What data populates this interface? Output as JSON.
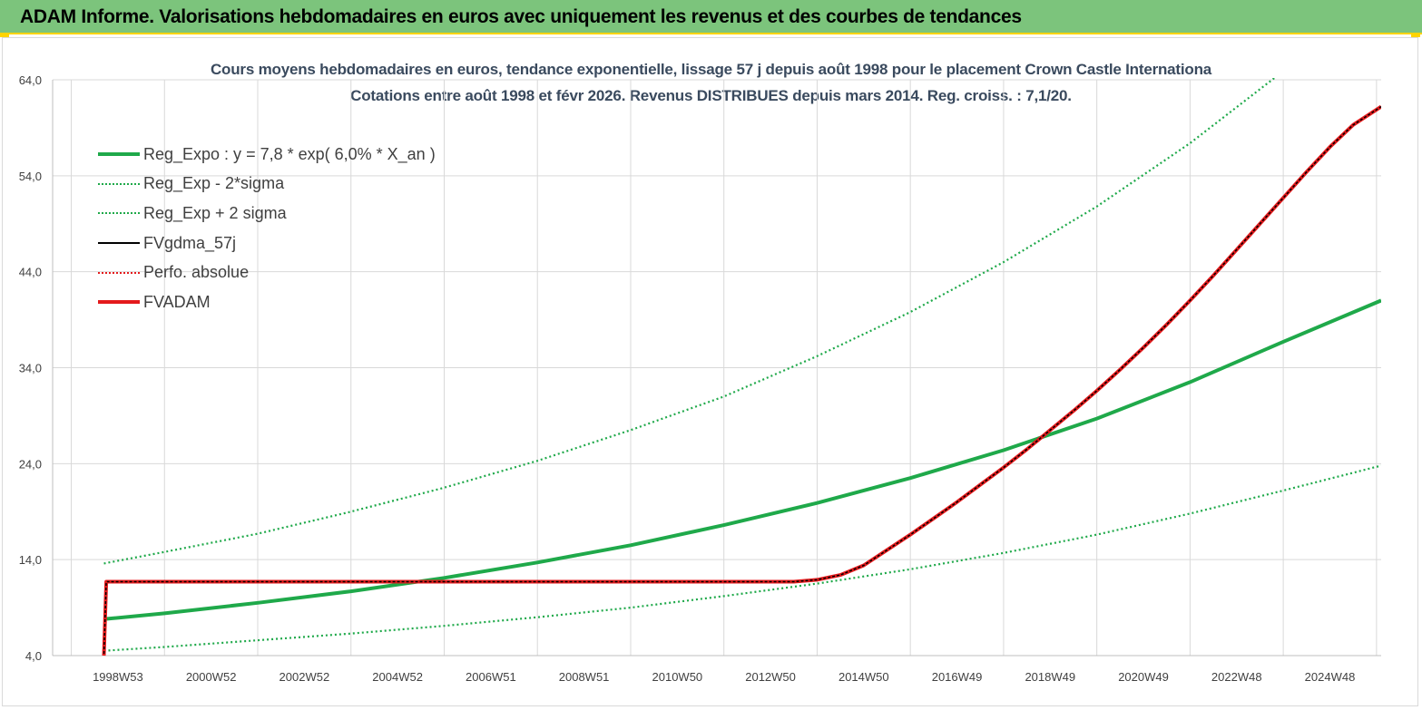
{
  "header": {
    "title": "ADAM Informe. Valorisations hebdomadaires en euros avec uniquement les revenus et des courbes de tendances"
  },
  "chart_data": {
    "type": "line",
    "title": "Cours moyens hebdomadaires en euros, tendance exponentielle, lissage 57 j depuis août 1998 pour le placement Crown Castle Internationa",
    "subtitle": "Cotations entre août 1998 et févr 2026. Revenus DISTRIBUES depuis mars 2014. Reg. croiss. : 7,1/20.",
    "xlabel": "",
    "ylabel": "",
    "x_range": [
      1997.6,
      2026.1
    ],
    "ylim": [
      4,
      64
    ],
    "y_ticks": [
      "4,0",
      "14,0",
      "24,0",
      "34,0",
      "44,0",
      "54,0",
      "64,0"
    ],
    "y_tick_values": [
      4,
      14,
      24,
      34,
      44,
      54,
      64
    ],
    "x_ticks": [
      "1998W53",
      "2000W52",
      "2002W52",
      "2004W52",
      "2006W51",
      "2008W51",
      "2010W50",
      "2012W50",
      "2014W50",
      "2016W49",
      "2018W49",
      "2020W49",
      "2022W48",
      "2024W48"
    ],
    "x_tick_values": [
      1999.0,
      2001.0,
      2003.0,
      2005.0,
      2007.0,
      2009.0,
      2011.0,
      2013.0,
      2015.0,
      2017.0,
      2019.0,
      2021.0,
      2023.0,
      2025.0
    ],
    "grid": true,
    "legend_position": "top-left",
    "series": [
      {
        "name": "Reg_Expo : y = 7,8 * exp( 6,0% *  X_an )",
        "color": "#1fa94a",
        "style": "solid-thick",
        "x": [
          1998.7,
          2000,
          2002,
          2004,
          2006,
          2008,
          2010,
          2012,
          2014,
          2016,
          2018,
          2020,
          2022,
          2024,
          2026.1
        ],
        "y": [
          7.8,
          8.4,
          9.5,
          10.7,
          12.1,
          13.7,
          15.5,
          17.6,
          19.9,
          22.5,
          25.4,
          28.7,
          32.5,
          36.7,
          41.0
        ]
      },
      {
        "name": "Reg_Exp - 2*sigma",
        "color": "#1fa94a",
        "style": "dotted",
        "x": [
          1998.7,
          2000,
          2002,
          2004,
          2006,
          2008,
          2010,
          2012,
          2014,
          2016,
          2018,
          2020,
          2022,
          2024,
          2026.1
        ],
        "y": [
          4.5,
          4.9,
          5.6,
          6.3,
          7.1,
          8.0,
          9.0,
          10.2,
          11.5,
          13.0,
          14.7,
          16.6,
          18.8,
          21.2,
          23.8
        ]
      },
      {
        "name": "Reg_Exp + 2 sigma",
        "color": "#1fa94a",
        "style": "dotted",
        "x": [
          1998.7,
          2000,
          2002,
          2004,
          2006,
          2008,
          2010,
          2012,
          2014,
          2016,
          2018,
          2020,
          2022,
          2024,
          2026.1
        ],
        "y": [
          13.6,
          14.8,
          16.7,
          19.0,
          21.5,
          24.3,
          27.5,
          31.0,
          35.2,
          39.8,
          45.0,
          50.8,
          57.4,
          64.9,
          70.0
        ]
      },
      {
        "name": "FVgdma_57j",
        "color": "#000000",
        "style": "solid",
        "x": [
          1998.7,
          1998.75,
          2013.5,
          2014.0,
          2014.5,
          2015.0,
          2015.5,
          2016.0,
          2016.5,
          2017.0,
          2017.5,
          2018.0,
          2018.5,
          2019.0,
          2019.5,
          2020.0,
          2020.5,
          2021.0,
          2021.5,
          2022.0,
          2022.5,
          2023.0,
          2023.5,
          2024.0,
          2024.5,
          2025.0,
          2025.5,
          2026.1
        ],
        "y": [
          4.0,
          11.7,
          11.7,
          11.9,
          12.4,
          13.4,
          15.0,
          16.6,
          18.3,
          20.0,
          21.8,
          23.6,
          25.5,
          27.5,
          29.5,
          31.6,
          33.8,
          36.1,
          38.5,
          41.0,
          43.6,
          46.3,
          49.0,
          51.7,
          54.4,
          57.0,
          59.3,
          61.2
        ]
      },
      {
        "name": "Perfo. absolue",
        "color": "#e41a1c",
        "style": "dotted",
        "x": [
          1998.7,
          1998.75,
          2013.5,
          2014.0,
          2014.5,
          2015.0,
          2015.5,
          2016.0,
          2016.5,
          2017.0,
          2017.5,
          2018.0,
          2018.5,
          2019.0,
          2019.5,
          2020.0,
          2020.5,
          2021.0,
          2021.5,
          2022.0,
          2022.5,
          2023.0,
          2023.5,
          2024.0,
          2024.5,
          2025.0,
          2025.5,
          2026.1
        ],
        "y": [
          4.0,
          11.7,
          11.7,
          11.9,
          12.4,
          13.4,
          15.0,
          16.6,
          18.3,
          20.0,
          21.8,
          23.6,
          25.5,
          27.5,
          29.5,
          31.6,
          33.8,
          36.1,
          38.5,
          41.0,
          43.6,
          46.3,
          49.0,
          51.7,
          54.4,
          57.0,
          59.3,
          61.2
        ]
      },
      {
        "name": "FVADAM",
        "color": "#e41a1c",
        "style": "solid-thick",
        "x": [
          1998.7,
          1998.75,
          2013.5,
          2014.0,
          2014.5,
          2015.0,
          2015.5,
          2016.0,
          2016.5,
          2017.0,
          2017.5,
          2018.0,
          2018.5,
          2019.0,
          2019.5,
          2020.0,
          2020.5,
          2021.0,
          2021.5,
          2022.0,
          2022.5,
          2023.0,
          2023.5,
          2024.0,
          2024.5,
          2025.0,
          2025.5,
          2026.1
        ],
        "y": [
          4.0,
          11.7,
          11.7,
          11.9,
          12.4,
          13.4,
          15.0,
          16.6,
          18.3,
          20.0,
          21.8,
          23.6,
          25.5,
          27.5,
          29.5,
          31.6,
          33.8,
          36.1,
          38.5,
          41.0,
          43.6,
          46.3,
          49.0,
          51.7,
          54.4,
          57.0,
          59.3,
          61.2
        ]
      }
    ]
  }
}
